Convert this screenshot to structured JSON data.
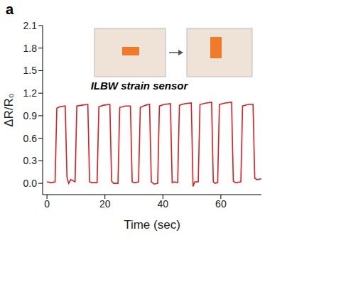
{
  "chart_data": {
    "type": "line",
    "panel": "a",
    "annotation": "ILBW strain sensor",
    "x_label": "Time (sec)",
    "y_label": "ΔR/R₀",
    "color": "#e41a1c",
    "grid": false,
    "xlim": [
      -1.5,
      74
    ],
    "xticks": [
      0,
      20,
      40,
      60
    ],
    "ylim": [
      -0.15,
      2.1
    ],
    "yticks": [
      {
        "value": 0,
        "label": "0.0"
      },
      0.3,
      0.6,
      0.9,
      1.2,
      1.5,
      1.8,
      2.1
    ],
    "x": [
      0,
      1.5,
      2.8,
      3.4,
      4.5,
      6.3,
      6.9,
      7.5,
      8.2,
      9.7,
      10.3,
      12,
      14.1,
      14.7,
      15.5,
      17.3,
      17.9,
      19.5,
      21.7,
      22.3,
      23,
      24.5,
      25.1,
      27,
      28.8,
      29.4,
      30.2,
      31.6,
      32.2,
      34,
      35.4,
      36,
      37,
      38.2,
      38.8,
      40.5,
      42.6,
      43.2,
      44,
      45.1,
      45.7,
      47.5,
      49.8,
      50.4,
      51,
      52.2,
      52.8,
      55,
      56.8,
      57.4,
      58,
      58.9,
      59.5,
      61.5,
      63.7,
      64.3,
      65,
      66.9,
      67.5,
      69.5,
      71.1,
      71.7,
      72.5,
      74
    ],
    "values": [
      0.02,
      0.01,
      0.02,
      1.0,
      1.02,
      1.03,
      0.08,
      0.0,
      0.05,
      0.02,
      1.03,
      1.04,
      1.05,
      0.02,
      0.01,
      0.01,
      1.02,
      1.04,
      1.05,
      0.03,
      0.0,
      0.0,
      1.01,
      1.03,
      1.03,
      0.02,
      0.01,
      0.02,
      1.01,
      1.04,
      1.05,
      0.02,
      -0.01,
      0.0,
      1.03,
      1.05,
      1.06,
      0.01,
      0.02,
      0.01,
      1.04,
      1.06,
      1.07,
      -0.04,
      0.02,
      0.02,
      1.05,
      1.07,
      1.08,
      0.02,
      0.0,
      0.01,
      1.05,
      1.07,
      1.08,
      0.03,
      0.01,
      0.02,
      1.03,
      1.05,
      1.05,
      0.07,
      0.05,
      0.06
    ]
  }
}
